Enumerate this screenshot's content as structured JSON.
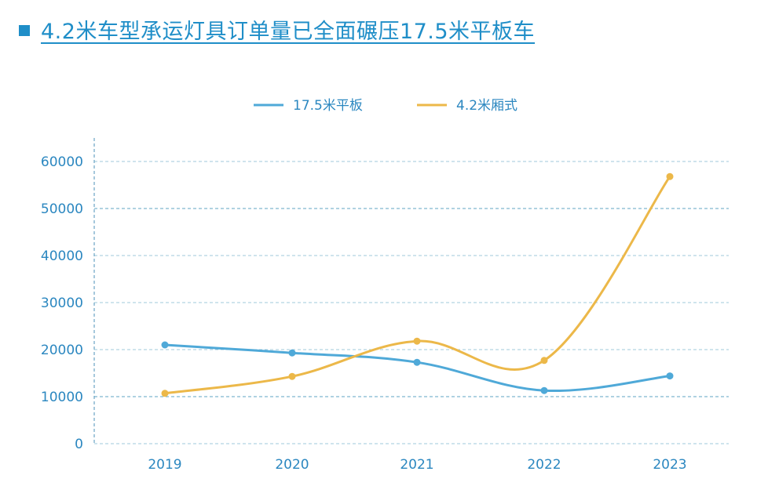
{
  "header": {
    "title": "4.2米车型承运灯具订单量已全面碾压17.5米平板车"
  },
  "colors": {
    "accent": "#1f8ec8",
    "text": "#2b87c0",
    "series_blue": "#4fa9d8",
    "series_orange": "#ecb849",
    "grid": "#7fb6cf",
    "axis": "#6aa4c4"
  },
  "chart_data": {
    "type": "line",
    "title": "",
    "xlabel": "",
    "ylabel": "",
    "x": [
      "2019",
      "2020",
      "2021",
      "2022",
      "2023"
    ],
    "ylim": [
      0,
      60000
    ],
    "yticks": [
      "0",
      "10000",
      "20000",
      "30000",
      "40000",
      "50000",
      "60000"
    ],
    "grid": true,
    "legend_position": "top-center",
    "series": [
      {
        "name": "17.5米平板",
        "color": "#4fa9d8",
        "values": [
          21000,
          19300,
          17300,
          11300,
          14400
        ]
      },
      {
        "name": "4.2米厢式",
        "color": "#ecb849",
        "values": [
          10700,
          14300,
          21800,
          17700,
          56800
        ]
      }
    ]
  }
}
